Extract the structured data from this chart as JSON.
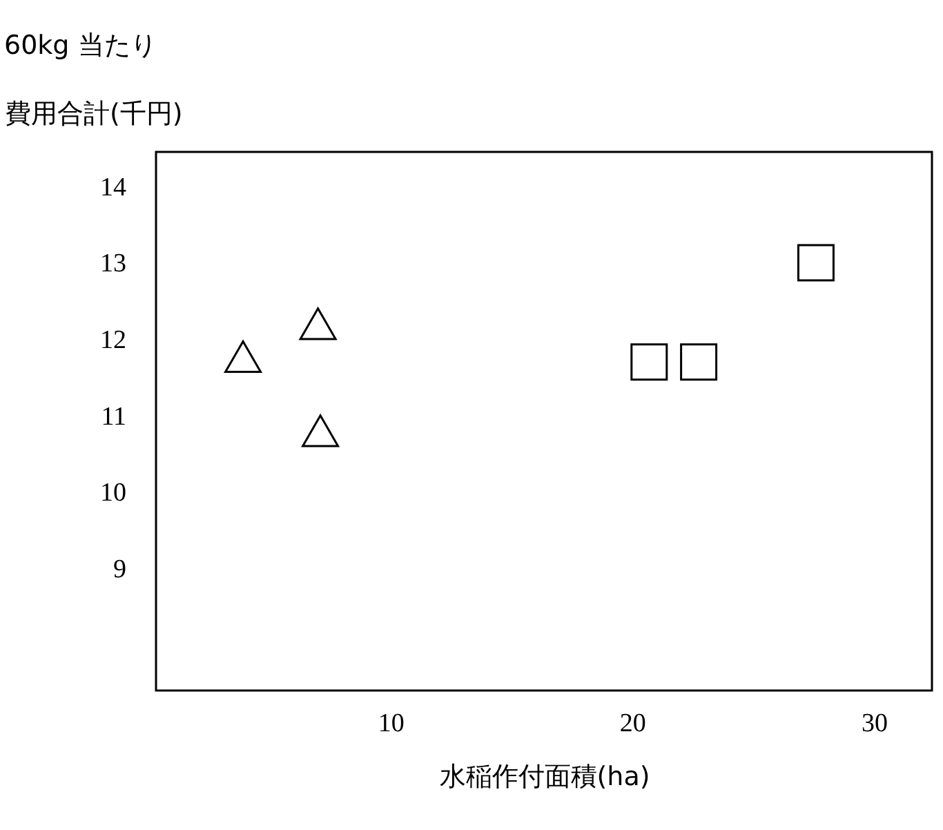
{
  "chart_data": {
    "type": "scatter",
    "title": "60kg 当たり",
    "ylabel": "費用合計(千円)",
    "xlabel": "水稲作付面積(ha)",
    "xlim": [
      0.3,
      32.4
    ],
    "xticks": [
      10,
      20,
      30
    ],
    "ylim": [
      7.4,
      14.45
    ],
    "yticks": [
      9,
      10,
      11,
      12,
      13,
      14
    ],
    "grid": false,
    "series": [
      {
        "color": "#000000",
        "marker": "triangle",
        "x": [
          3.9,
          7.0,
          7.1
        ],
        "values": [
          11.77,
          12.2,
          10.8
        ]
      },
      {
        "color": "#000000",
        "marker": "square",
        "x": [
          20.7,
          22.75,
          27.6
        ],
        "values": [
          11.7,
          11.7,
          13.0
        ]
      }
    ]
  }
}
